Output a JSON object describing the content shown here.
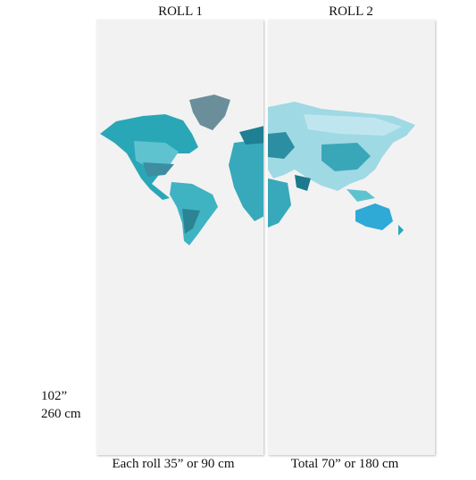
{
  "rolls": [
    {
      "label": "ROLL 1"
    },
    {
      "label": "ROLL 2"
    }
  ],
  "height": {
    "inches": "102”",
    "cm": "260 cm"
  },
  "widths": {
    "each": "Each roll 35” or 90 cm",
    "total": "Total 70” or 180 cm"
  }
}
